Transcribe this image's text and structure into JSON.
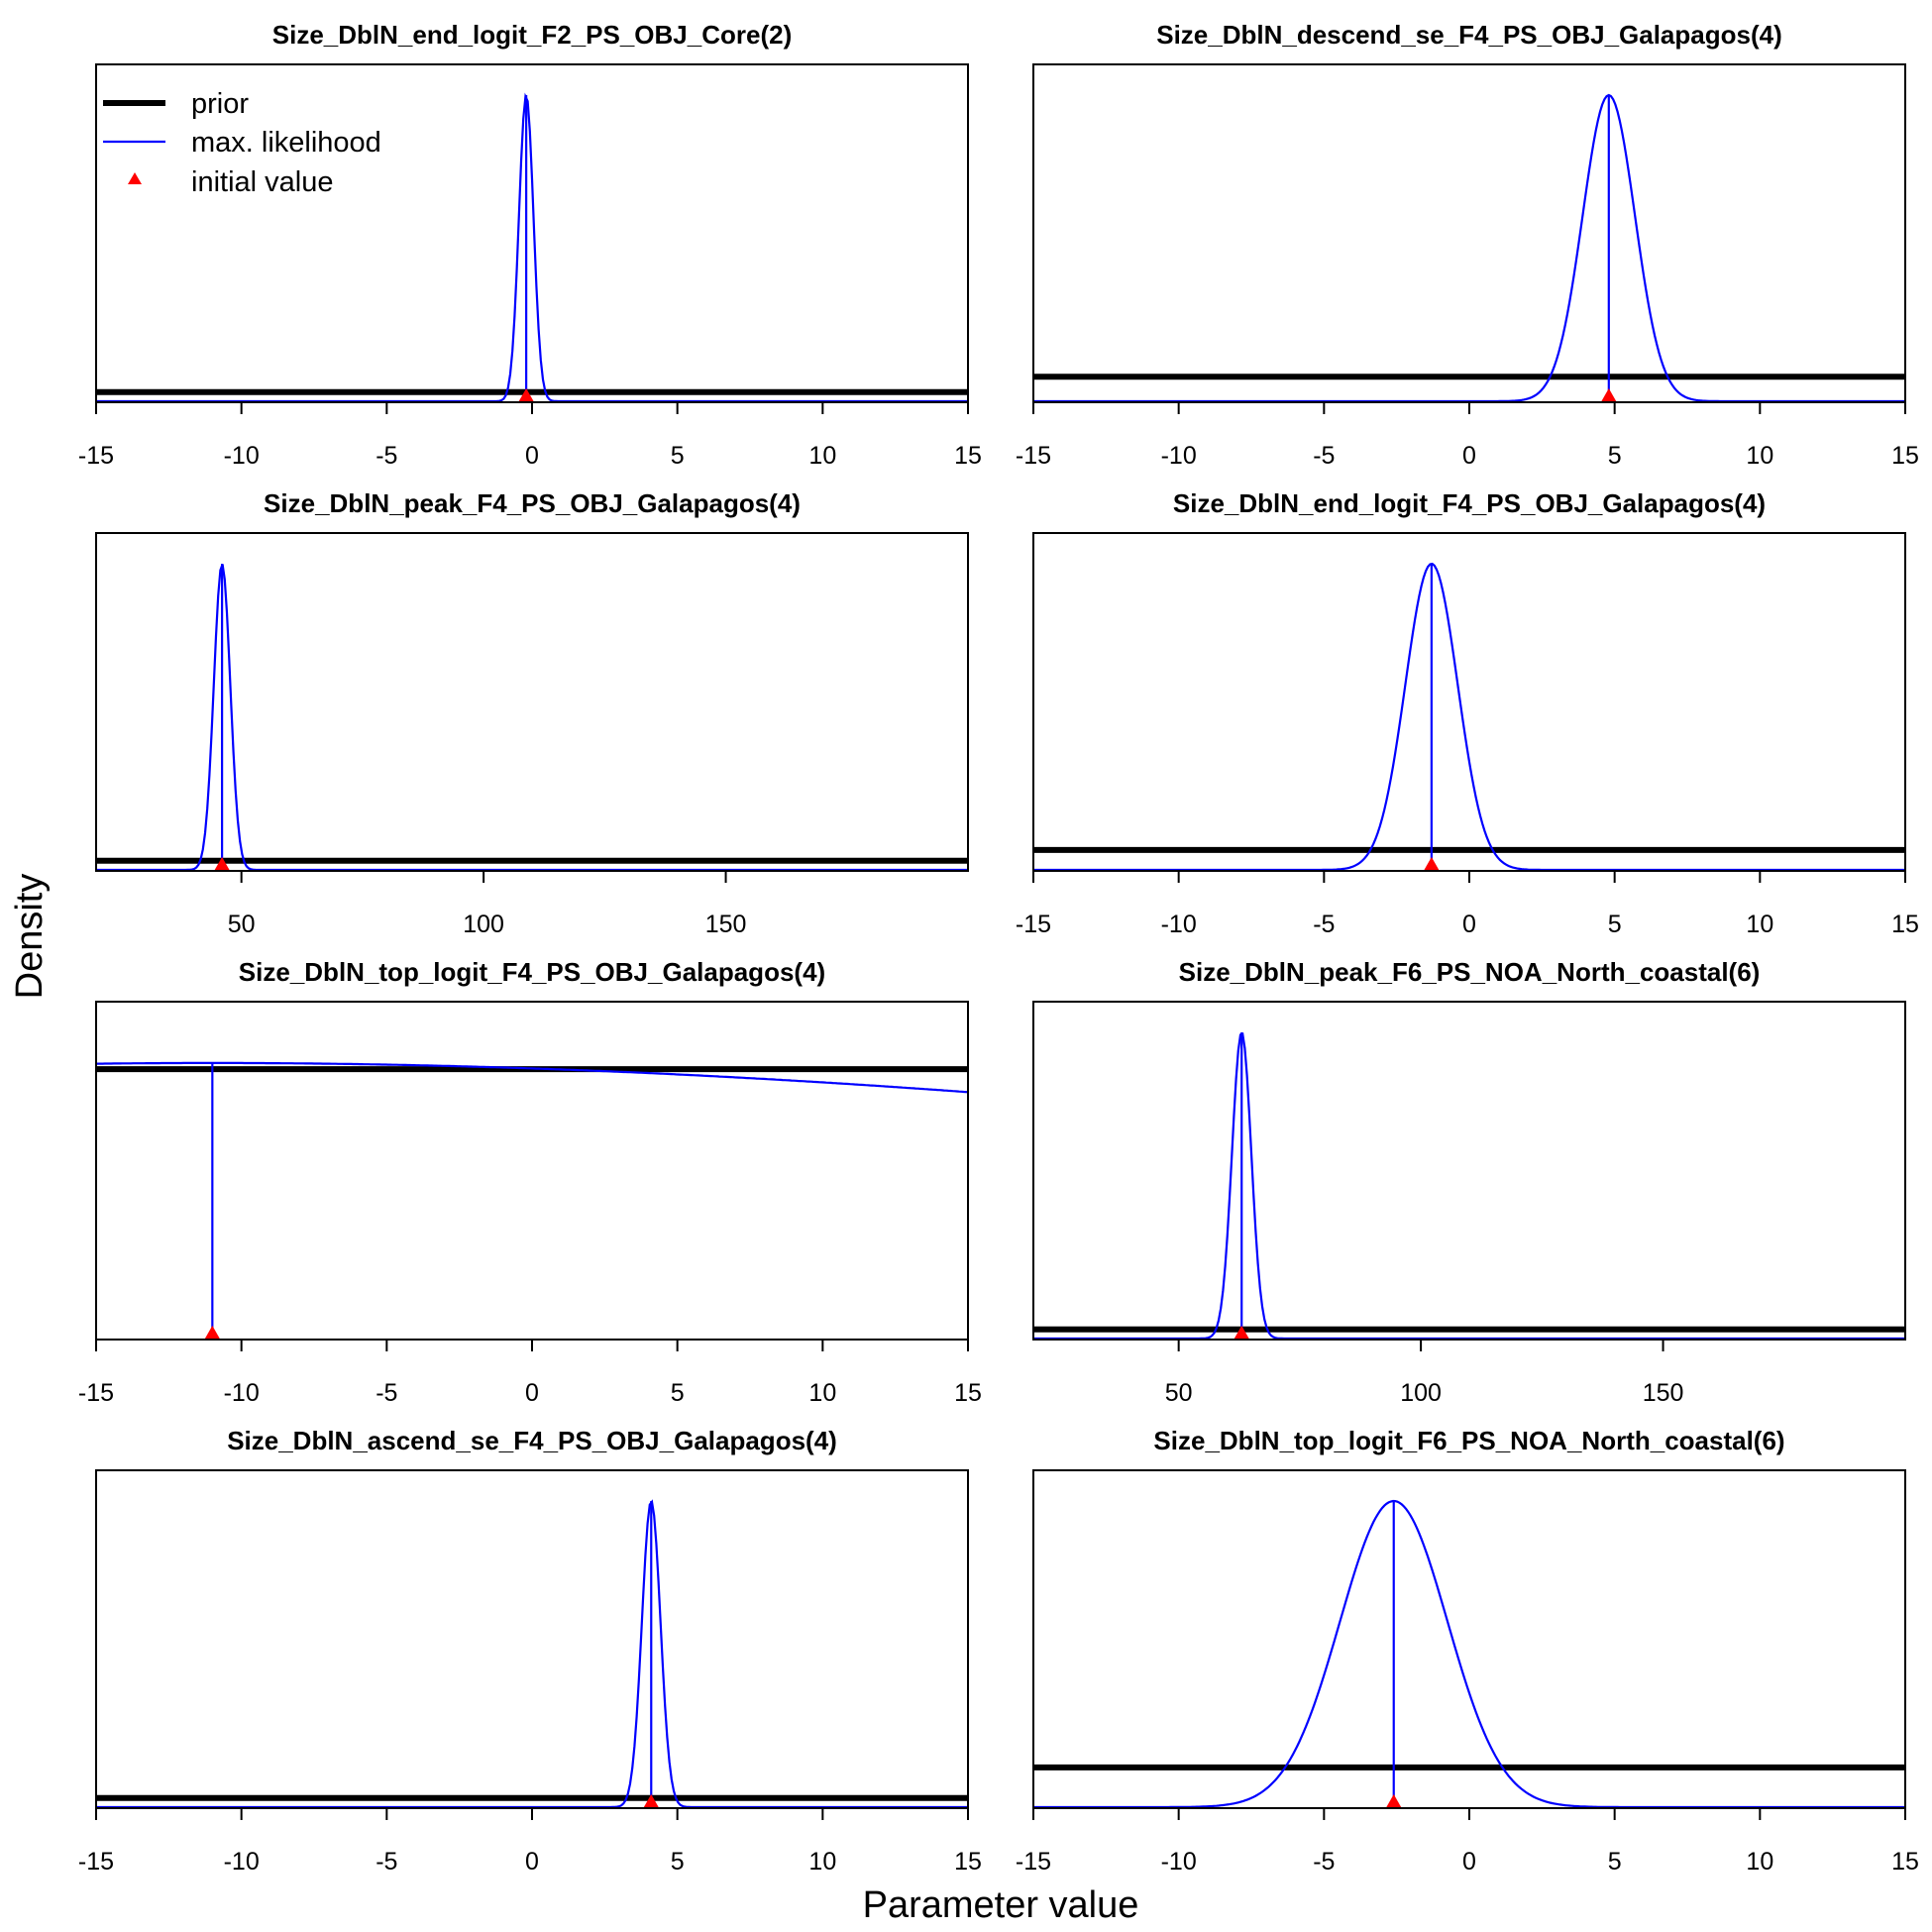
{
  "figure": {
    "xlabel": "Parameter value",
    "ylabel": "Density"
  },
  "legend": {
    "items": [
      {
        "label": "prior",
        "kind": "line",
        "color": "#000000"
      },
      {
        "label": "max. likelihood",
        "kind": "line",
        "color": "#0000ff"
      },
      {
        "label": "initial value",
        "kind": "triangle",
        "color": "#ff0000"
      }
    ],
    "placement": "top-left of first panel"
  },
  "colors": {
    "prior": "#000000",
    "likelihood": "#0000ff",
    "initial": "#ff0000"
  },
  "chart_data": [
    {
      "type": "line",
      "title": "Size_DblN_end_logit_F2_PS_OBJ_Core(2)",
      "xlim": [
        -15,
        15
      ],
      "xticks": [
        -15,
        -10,
        -5,
        0,
        5,
        10,
        15
      ],
      "prior_level": 0.03,
      "likelihood": {
        "mean": -0.2,
        "sd": 0.25
      },
      "initial_value": -0.2
    },
    {
      "type": "line",
      "title": "Size_DblN_descend_se_F4_PS_OBJ_Galapagos(4)",
      "xlim": [
        -15,
        15
      ],
      "xticks": [
        -15,
        -10,
        -5,
        0,
        5,
        10,
        15
      ],
      "prior_level": 0.08,
      "likelihood": {
        "mean": 4.8,
        "sd": 0.9
      },
      "initial_value": 4.8
    },
    {
      "type": "line",
      "title": "Size_DblN_peak_F4_PS_OBJ_Galapagos(4)",
      "xlim": [
        20,
        200
      ],
      "xticks": [
        50,
        100,
        150
      ],
      "prior_level": 0.03,
      "likelihood": {
        "mean": 46,
        "sd": 1.7
      },
      "initial_value": 46
    },
    {
      "type": "line",
      "title": "Size_DblN_end_logit_F4_PS_OBJ_Galapagos(4)",
      "xlim": [
        -15,
        15
      ],
      "xticks": [
        -15,
        -10,
        -5,
        0,
        5,
        10,
        15
      ],
      "prior_level": 0.065,
      "likelihood": {
        "mean": -1.3,
        "sd": 0.9
      },
      "initial_value": -1.3
    },
    {
      "type": "line",
      "title": "Size_DblN_top_logit_F4_PS_OBJ_Galapagos(4)",
      "xlim": [
        -15,
        15
      ],
      "xticks": [
        -15,
        -10,
        -5,
        0,
        5,
        10,
        15
      ],
      "prior_level": 0.88,
      "likelihood": {
        "mean": -11,
        "sd": 55,
        "scale": 0.9
      },
      "initial_value": -11
    },
    {
      "type": "line",
      "title": "Size_DblN_peak_F6_PS_NOA_North_coastal(6)",
      "xlim": [
        20,
        200
      ],
      "xticks": [
        50,
        100,
        150
      ],
      "prior_level": 0.03,
      "likelihood": {
        "mean": 63,
        "sd": 2.0
      },
      "initial_value": 63
    },
    {
      "type": "line",
      "title": "Size_DblN_ascend_se_F4_PS_OBJ_Galapagos(4)",
      "xlim": [
        -15,
        15
      ],
      "xticks": [
        -15,
        -10,
        -5,
        0,
        5,
        10,
        15
      ],
      "prior_level": 0.03,
      "likelihood": {
        "mean": 4.1,
        "sd": 0.32
      },
      "initial_value": 4.1
    },
    {
      "type": "line",
      "title": "Size_DblN_top_logit_F6_PS_NOA_North_coastal(6)",
      "xlim": [
        -15,
        15
      ],
      "xticks": [
        -15,
        -10,
        -5,
        0,
        5,
        10,
        15
      ],
      "prior_level": 0.13,
      "likelihood": {
        "mean": -2.6,
        "sd": 1.85
      },
      "initial_value": -2.6
    }
  ]
}
